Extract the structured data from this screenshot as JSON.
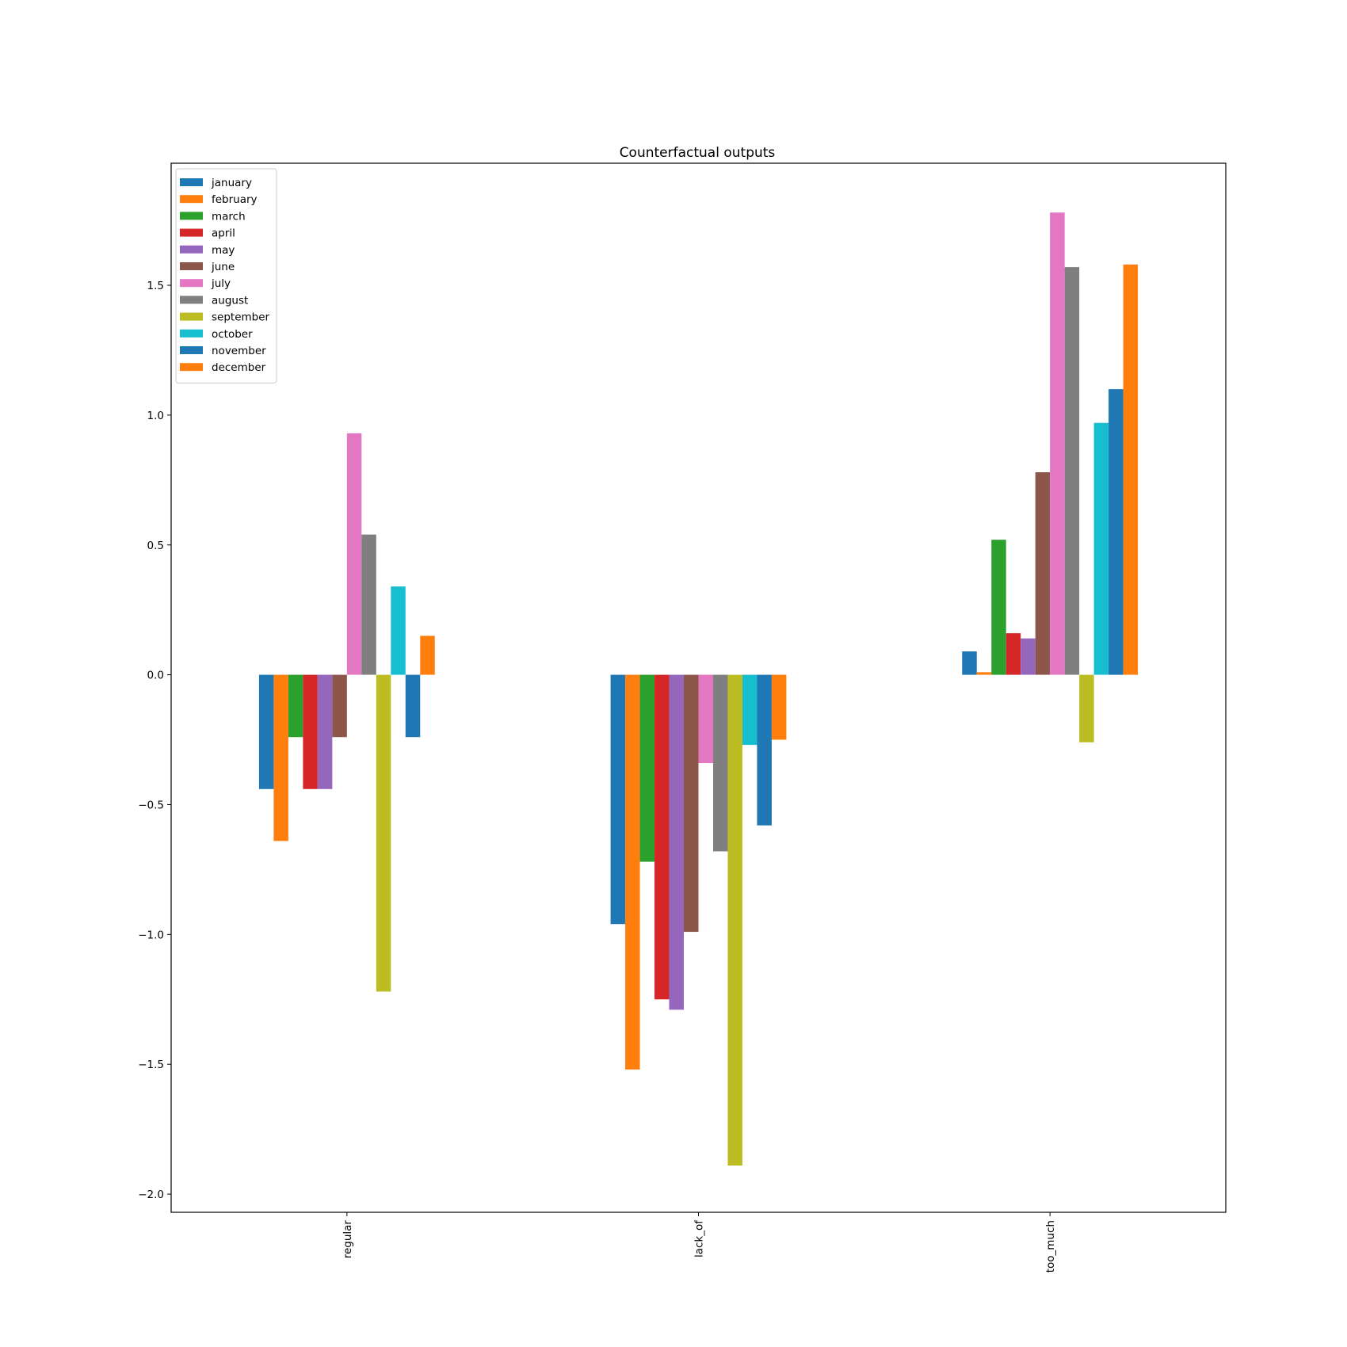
{
  "chart_data": {
    "type": "bar",
    "title": "Counterfactual outputs",
    "xlabel": "",
    "ylabel": "",
    "categories": [
      "regular",
      "lack_of",
      "too_much"
    ],
    "ylim": [
      -2.07,
      1.97
    ],
    "yticks": [
      -2.0,
      -1.5,
      -1.0,
      -0.5,
      0.0,
      0.5,
      1.0,
      1.5
    ],
    "ytick_labels": [
      "−2.0",
      "−1.5",
      "−1.0",
      "−0.5",
      "0.0",
      "0.5",
      "1.0",
      "1.5"
    ],
    "legend_position": "top-left",
    "grid": false,
    "series": [
      {
        "name": "january",
        "color": "#1f77b4",
        "values": [
          -0.44,
          -0.96,
          0.09
        ]
      },
      {
        "name": "february",
        "color": "#ff7f0e",
        "values": [
          -0.64,
          -1.52,
          0.01
        ]
      },
      {
        "name": "march",
        "color": "#2ca02c",
        "values": [
          -0.24,
          -0.72,
          0.52
        ]
      },
      {
        "name": "april",
        "color": "#d62728",
        "values": [
          -0.44,
          -1.25,
          0.16
        ]
      },
      {
        "name": "may",
        "color": "#9467bd",
        "values": [
          -0.44,
          -1.29,
          0.14
        ]
      },
      {
        "name": "june",
        "color": "#8c564b",
        "values": [
          -0.24,
          -0.99,
          0.78
        ]
      },
      {
        "name": "july",
        "color": "#e377c2",
        "values": [
          0.93,
          -0.34,
          1.78
        ]
      },
      {
        "name": "august",
        "color": "#7f7f7f",
        "values": [
          0.54,
          -0.68,
          1.57
        ]
      },
      {
        "name": "september",
        "color": "#bcbd22",
        "values": [
          -1.22,
          -1.89,
          -0.26
        ]
      },
      {
        "name": "october",
        "color": "#17becf",
        "values": [
          0.34,
          -0.27,
          0.97
        ]
      },
      {
        "name": "november",
        "color": "#1f77b4",
        "values": [
          -0.24,
          -0.58,
          1.1
        ]
      },
      {
        "name": "december",
        "color": "#ff7f0e",
        "values": [
          0.15,
          -0.25,
          1.58
        ]
      }
    ]
  }
}
